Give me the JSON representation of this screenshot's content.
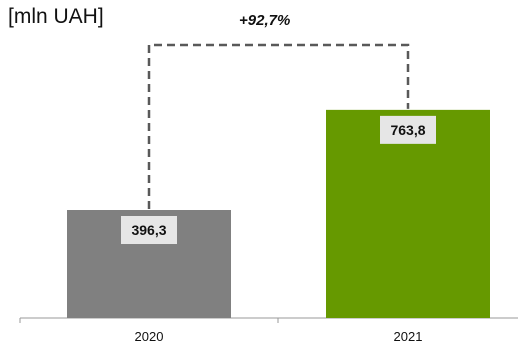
{
  "chart_data": {
    "type": "bar",
    "unit_label": "[mln UAH]",
    "categories": [
      "2020",
      "2021"
    ],
    "values": [
      396.3,
      763.8
    ],
    "value_labels": [
      "396,3",
      "763,8"
    ],
    "colors": [
      "#808080",
      "#669900"
    ],
    "ylim": [
      0,
      800
    ],
    "annotation": "+92,7%",
    "grid": false,
    "legend": "none"
  }
}
